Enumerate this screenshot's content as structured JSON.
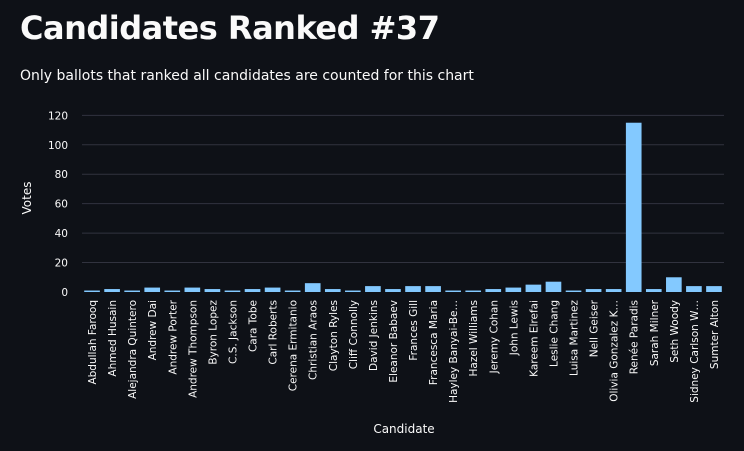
{
  "header": {
    "title": "Candidates Ranked #37",
    "subtitle": "Only ballots that ranked all candidates are counted for this chart"
  },
  "colors": {
    "background": "#0e1117",
    "bar": "#83c9ff",
    "grid": "#31333f",
    "text": "#fafafa"
  },
  "chart_data": {
    "type": "bar",
    "title": "",
    "xlabel": "Candidate",
    "ylabel": "Votes",
    "ylim": [
      0,
      125
    ],
    "yticks": [
      0,
      20,
      40,
      60,
      80,
      100,
      120
    ],
    "grid": true,
    "categories": [
      "Abdullah Farooq",
      "Ahmed Husain",
      "Alejandra Quintero",
      "Andrew Dai",
      "Andrew Porter",
      "Andrew Thompson",
      "Byron Lopez",
      "C.S. Jackson",
      "Cara Tobe",
      "Carl Roberts",
      "Cerena Ermitanio",
      "Christian Araos",
      "Clayton Ryles",
      "Cliff Connolly",
      "David Jenkins",
      "Eleanor Babaev",
      "Frances Gill",
      "Francesca Maria",
      "Hayley Banyai-Be…",
      "Hazel Williams",
      "Jeremy Cohan",
      "John Lewis",
      "Kareem Elrefai",
      "Leslie Chang",
      "Luisa Martinez",
      "Nell Geiser",
      "Olivia Gonzalez K…",
      "Renée Paradis",
      "Sarah Milner",
      "Seth Woody",
      "Sidney Carlson W…",
      "Sumter Alton"
    ],
    "values": [
      1,
      2,
      1,
      3,
      1,
      3,
      2,
      1,
      2,
      3,
      1,
      6,
      2,
      1,
      4,
      2,
      4,
      4,
      1,
      1,
      2,
      3,
      5,
      7,
      1,
      2,
      2,
      115,
      2,
      10,
      4,
      4
    ]
  }
}
